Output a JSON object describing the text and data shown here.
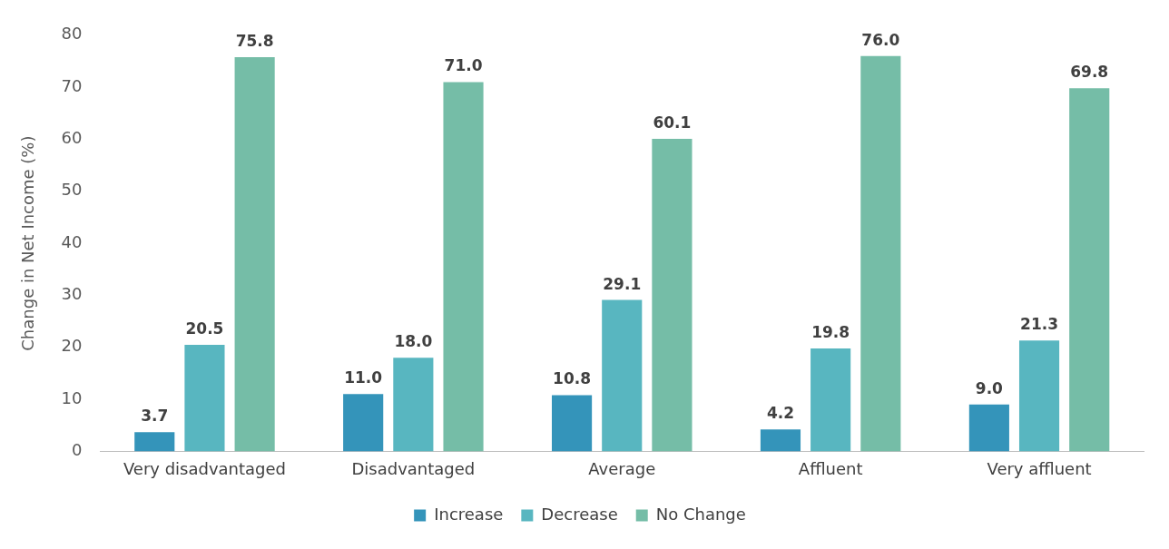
{
  "chart_data": {
    "type": "bar",
    "ylabel": "Change in Net Income (%)",
    "categories": [
      "Very disadvantaged",
      "Disadvantaged",
      "Average",
      "Affluent",
      "Very affluent"
    ],
    "series": [
      {
        "name": "Increase",
        "color": "#3494ba",
        "values": [
          3.7,
          11.0,
          10.8,
          4.2,
          9.0
        ],
        "value_labels": [
          "3.7",
          "11.0",
          "10.8",
          "4.2",
          "9.0"
        ]
      },
      {
        "name": "Decrease",
        "color": "#58b6c0",
        "values": [
          20.5,
          18.0,
          29.1,
          19.8,
          21.3
        ],
        "value_labels": [
          "20.5",
          "18.0",
          "29.1",
          "19.8",
          "21.3"
        ]
      },
      {
        "name": "No Change",
        "color": "#75bda7",
        "values": [
          75.8,
          71.0,
          60.1,
          76.0,
          69.8
        ],
        "value_labels": [
          "75.8",
          "71.0",
          "60.1",
          "76.0",
          "69.8"
        ]
      }
    ],
    "ylim": [
      0,
      80
    ],
    "yticks": [
      0,
      10,
      20,
      30,
      40,
      50,
      60,
      70,
      80
    ],
    "grid": false,
    "legend": "bottom"
  }
}
